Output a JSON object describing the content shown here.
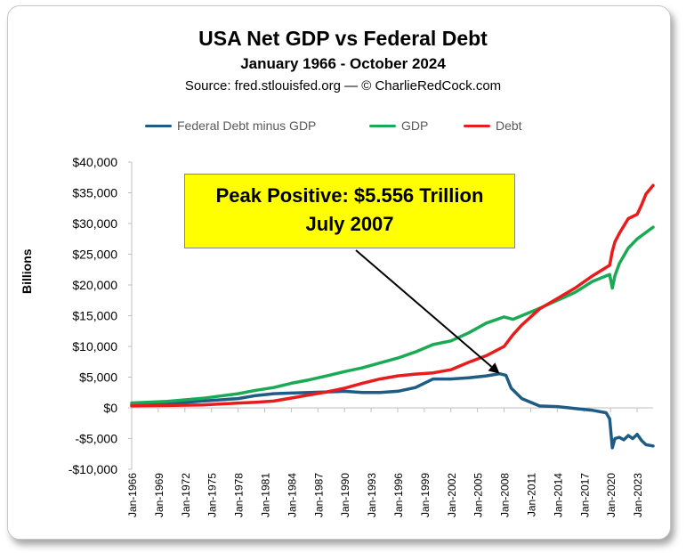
{
  "header": {
    "title": "USA Net GDP vs Federal Debt",
    "subtitle": "January 1966 - October 2024",
    "source": "Source: fred.stlouisfed.org — © CharlieRedCock.com"
  },
  "legend": {
    "items": [
      {
        "label": "Federal Debt minus GDP",
        "color": "#1f5c85"
      },
      {
        "label": "GDP",
        "color": "#1aaa55"
      },
      {
        "label": "Debt",
        "color": "#e81c1c"
      }
    ]
  },
  "callout": {
    "line1": "Peak Positive: $5.556 Trillion",
    "line2": "July 2007"
  },
  "chart_data": {
    "type": "line",
    "title": "USA Net GDP vs Federal Debt",
    "xlabel": "",
    "ylabel": "Billions",
    "ylim": [
      -10000,
      40000
    ],
    "xlim": [
      1966.0,
      2024.8
    ],
    "yticks": [
      -10000,
      -5000,
      0,
      5000,
      10000,
      15000,
      20000,
      25000,
      30000,
      35000,
      40000
    ],
    "ytick_labels": [
      "-$10,000",
      "-$5,000",
      "$0",
      "$5,000",
      "$10,000",
      "$15,000",
      "$20,000",
      "$25,000",
      "$30,000",
      "$35,000",
      "$40,000"
    ],
    "xticks": [
      1966,
      1969,
      1972,
      1975,
      1978,
      1981,
      1984,
      1987,
      1990,
      1993,
      1996,
      1999,
      2002,
      2005,
      2008,
      2011,
      2014,
      2017,
      2020,
      2023
    ],
    "xtick_labels": [
      "Jan-1966",
      "Jan-1969",
      "Jan-1972",
      "Jan-1975",
      "Jan-1978",
      "Jan-1981",
      "Jan-1984",
      "Jan-1987",
      "Jan-1990",
      "Jan-1993",
      "Jan-1996",
      "Jan-1999",
      "Jan-2002",
      "Jan-2005",
      "Jan-2008",
      "Jan-2011",
      "Jan-2014",
      "Jan-2017",
      "Jan-2020",
      "Jan-2023"
    ],
    "annotation": {
      "text": "Peak Positive: $5.556 Trillion July 2007",
      "x": 2007.5,
      "y": 5556
    },
    "series": [
      {
        "name": "Federal Debt minus GDP",
        "color": "#1f5c85",
        "x": [
          1966,
          1970,
          1974,
          1978,
          1980,
          1982,
          1984,
          1986,
          1988,
          1990,
          1992,
          1994,
          1996,
          1998,
          2000,
          2002,
          2004,
          2006,
          2007.5,
          2008.2,
          2008.8,
          2010,
          2012,
          2014,
          2016,
          2018,
          2019.5,
          2019.9,
          2020.2,
          2020.5,
          2021,
          2021.5,
          2022,
          2022.5,
          2023,
          2023.5,
          2024,
          2024.8
        ],
        "values": [
          500,
          700,
          1100,
          1500,
          2000,
          2300,
          2400,
          2500,
          2600,
          2700,
          2500,
          2500,
          2700,
          3300,
          4700,
          4700,
          4900,
          5200,
          5556,
          5300,
          3200,
          1500,
          300,
          200,
          -100,
          -400,
          -800,
          -1800,
          -6500,
          -5000,
          -4800,
          -5200,
          -4500,
          -5000,
          -4300,
          -5300,
          -6000,
          -6200
        ]
      },
      {
        "name": "GDP",
        "color": "#1aaa55",
        "x": [
          1966,
          1970,
          1974,
          1978,
          1980,
          1982,
          1984,
          1986,
          1988,
          1990,
          1992,
          1994,
          1996,
          1998,
          2000,
          2002,
          2004,
          2006,
          2008,
          2009,
          2010,
          2012,
          2014,
          2016,
          2018,
          2019.9,
          2020.2,
          2020.5,
          2021,
          2022,
          2023,
          2024.8
        ],
        "values": [
          800,
          1050,
          1550,
          2300,
          2850,
          3300,
          4000,
          4550,
          5200,
          5900,
          6500,
          7300,
          8100,
          9100,
          10300,
          10900,
          12200,
          13800,
          14800,
          14400,
          15000,
          16200,
          17500,
          18800,
          20600,
          21700,
          19500,
          21500,
          23500,
          26000,
          27500,
          29400
        ]
      },
      {
        "name": "Debt",
        "color": "#e81c1c",
        "x": [
          1966,
          1970,
          1974,
          1978,
          1980,
          1982,
          1984,
          1986,
          1988,
          1990,
          1992,
          1994,
          1996,
          1998,
          2000,
          2002,
          2004,
          2006,
          2008,
          2009,
          2010,
          2012,
          2014,
          2016,
          2018,
          2019.9,
          2020.2,
          2020.5,
          2021,
          2022,
          2023,
          2023.5,
          2024,
          2024.8
        ],
        "values": [
          320,
          380,
          480,
          780,
          900,
          1100,
          1600,
          2100,
          2600,
          3200,
          4000,
          4700,
          5200,
          5500,
          5700,
          6200,
          7400,
          8500,
          10000,
          11900,
          13500,
          16100,
          17800,
          19500,
          21500,
          23200,
          25500,
          27000,
          28400,
          30800,
          31500,
          33000,
          34800,
          36200
        ]
      }
    ]
  }
}
